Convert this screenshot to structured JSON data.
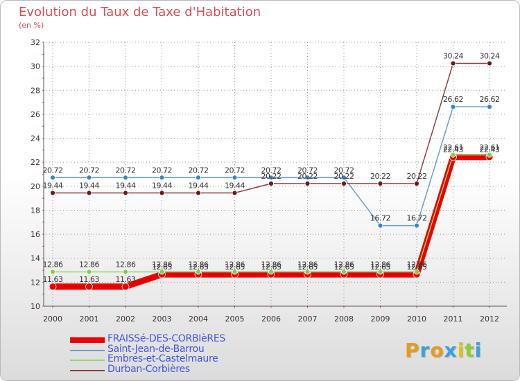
{
  "title": "Evolution du Taux de Taxe d'Habitation",
  "unit": "(en %)",
  "brand": "Proxiti",
  "colors": {
    "title": "#d0505b",
    "grid": "#999999",
    "axis_ticks": "#e05050",
    "legend_text": "#4455dd"
  },
  "chart_data": {
    "type": "line",
    "title": "Evolution du Taux de Taxe d'Habitation",
    "ylabel": "(en %)",
    "xlabel": "",
    "ylim": [
      10,
      32
    ],
    "yticks": [
      10,
      12,
      14,
      16,
      18,
      20,
      22,
      24,
      26,
      28,
      30,
      32
    ],
    "grid": true,
    "categories": [
      "2000",
      "2001",
      "2002",
      "2003",
      "2004",
      "2005",
      "2006",
      "2007",
      "2008",
      "2009",
      "2010",
      "2011",
      "2012"
    ],
    "series": [
      {
        "name": "FRAISSé-DES-CORBIèRES",
        "color": "#ee0000",
        "marker": "#ee0000",
        "thick": true,
        "values": [
          11.63,
          11.63,
          11.63,
          12.65,
          12.65,
          12.65,
          12.65,
          12.65,
          12.65,
          12.65,
          12.65,
          22.43,
          22.43
        ],
        "labels": [
          "11.63",
          "11.63",
          "11.63",
          "12.65",
          "12.65",
          "12.65",
          "12.65",
          "12.65",
          "12.65",
          "12.65",
          "12.65",
          "22.43",
          "22.43"
        ]
      },
      {
        "name": "Saint-Jean-de-Barrou",
        "color": "#6a9ec8",
        "marker": "#3a86c8",
        "values": [
          20.72,
          20.72,
          20.72,
          20.72,
          20.72,
          20.72,
          20.72,
          20.72,
          20.72,
          16.72,
          16.72,
          26.62,
          26.62
        ],
        "labels": [
          "20.72",
          "20.72",
          "20.72",
          "20.72",
          "20.72",
          "20.72",
          "20.72",
          "20.72",
          "20.72",
          "16.72",
          "16.72",
          "26.62",
          "26.62"
        ]
      },
      {
        "name": "Embres-et-Castelmaure",
        "color": "#90d870",
        "marker": "#7ed040",
        "values": [
          12.86,
          12.86,
          12.86,
          12.86,
          12.86,
          12.86,
          12.86,
          12.86,
          12.86,
          12.86,
          12.86,
          22.61,
          22.61
        ],
        "labels": [
          "12.86",
          "12.86",
          "12.86",
          "12.86",
          "12.86",
          "12.86",
          "12.86",
          "12.86",
          "12.86",
          "12.86",
          "12.86",
          "22.61",
          "22.61"
        ]
      },
      {
        "name": "Durban-Corbières",
        "color": "#8a4040",
        "marker": "#6a1818",
        "values": [
          19.44,
          19.44,
          19.44,
          19.44,
          19.44,
          19.44,
          20.22,
          20.22,
          20.22,
          20.22,
          20.22,
          30.24,
          30.24
        ],
        "labels": [
          "19.44",
          "19.44",
          "19.44",
          "19.44",
          "19.44",
          "19.44",
          "20.22",
          "20.22",
          "20.22",
          "20.22",
          "20.22",
          "30.24",
          "30.24"
        ]
      }
    ]
  }
}
